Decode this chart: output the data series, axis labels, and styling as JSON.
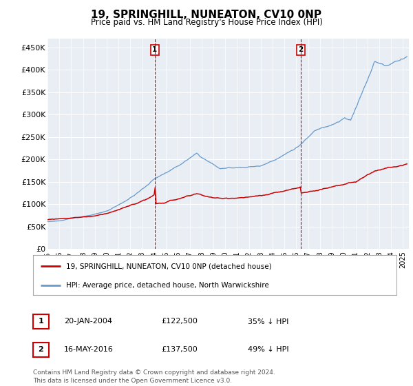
{
  "title": "19, SPRINGHILL, NUNEATON, CV10 0NP",
  "subtitle": "Price paid vs. HM Land Registry's House Price Index (HPI)",
  "ylabel_ticks": [
    "£0",
    "£50K",
    "£100K",
    "£150K",
    "£200K",
    "£250K",
    "£300K",
    "£350K",
    "£400K",
    "£450K"
  ],
  "ytick_values": [
    0,
    50000,
    100000,
    150000,
    200000,
    250000,
    300000,
    350000,
    400000,
    450000
  ],
  "ylim": [
    0,
    470000
  ],
  "xlim_start": 1995.0,
  "xlim_end": 2025.5,
  "red_line_color": "#cc0000",
  "blue_line_color": "#6699cc",
  "marker1_x": 2004.055,
  "marker1_y": 122500,
  "marker2_x": 2016.37,
  "marker2_y": 137500,
  "legend_label_red": "19, SPRINGHILL, NUNEATON, CV10 0NP (detached house)",
  "legend_label_blue": "HPI: Average price, detached house, North Warwickshire",
  "footnote": "Contains HM Land Registry data © Crown copyright and database right 2024.\nThis data is licensed under the Open Government Licence v3.0.",
  "background_color": "#ffffff",
  "plot_bg_color": "#e8eef4"
}
